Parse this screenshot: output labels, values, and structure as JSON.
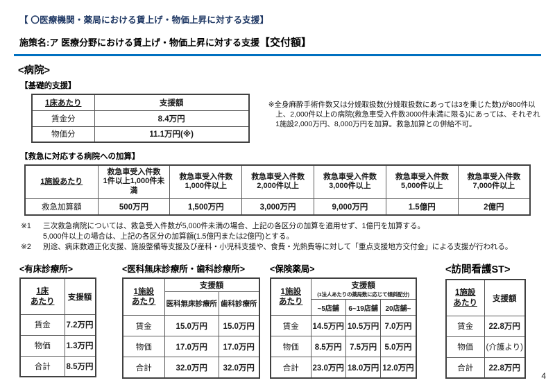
{
  "colors": {
    "accent_blue": "#0070c0",
    "title_navy": "#1f3864"
  },
  "page_number": "4",
  "header": {
    "title": "【 〇医療機関・薬局における賃上げ・物価上昇に対する支援】",
    "policy_prefix": "施策名:ア 医療分野における賃上げ・物価上昇に対する支援",
    "policy_emphasis": "【交付額】"
  },
  "hospital": {
    "title": "<病院>",
    "basic": {
      "label": "【基礎的支援】",
      "unit_header": "1床あたり",
      "amount_header": "支援額",
      "rows": [
        {
          "label": "賃金分",
          "value": "8.4万円"
        },
        {
          "label": "物価分",
          "value": "11.1万円(※)"
        }
      ],
      "note": "※全身麻酔手術件数又は分娩取扱数(分娩取扱数にあっては3を乗じた数)が800件以上、2,000件以上の病院(救急車受入件数3000件未満に限る)にあっては、それぞれ1施設2,000万円、8,000万円を加算。救急加算との併給不可。"
    },
    "emergency": {
      "label": "【救急に対応する病院への加算】",
      "unit_header": "1施設あたり",
      "columns": [
        {
          "l1": "救急車受入件数",
          "l2": "1件以上1,000件未満"
        },
        {
          "l1": "救急車受入件数",
          "l2": "1,000件以上"
        },
        {
          "l1": "救急車受入件数",
          "l2": "2,000件以上"
        },
        {
          "l1": "救急車受入件数",
          "l2": "3,000件以上"
        },
        {
          "l1": "救急車受入件数",
          "l2": "5,000件以上"
        },
        {
          "l1": "救急車受入件数",
          "l2": "7,000件以上"
        }
      ],
      "row_label": "救急加算額",
      "values": [
        "500万円",
        "1,500万円",
        "3,000万円",
        "9,000万円",
        "1.5億円",
        "2億円"
      ]
    },
    "notes": [
      {
        "marker": "※1",
        "lines": [
          "三次救急病院については、救急受入件数が5,000件未満の場合、上記の各区分の加算を適用せず、1億円を加算する。",
          "5,000件以上の場合は、上記の各区分の加算額(1.5億円または2億円)とする。"
        ]
      },
      {
        "marker": "※2",
        "lines": [
          "別途、病床数適正化支援、施設整備等支援及び産科・小児科支援や、食費・光熱費等に対して「重点支援地方交付金」による支援が行われる。"
        ]
      }
    ]
  },
  "bottom": {
    "clinics": {
      "title": "<有床診療所>",
      "unit_l1": "1床",
      "unit_l2": "あたり",
      "amount_header": "支援額",
      "rows": [
        {
          "label": "賃金",
          "value": "7.2万円"
        },
        {
          "label": "物価",
          "value": "1.3万円"
        },
        {
          "label": "合計",
          "value": "8.5万円"
        }
      ]
    },
    "no_bed": {
      "title": "<医科無床診療所・歯科診療所>",
      "unit_l1": "1施設",
      "unit_l2": "あたり",
      "amount_header": "支援額",
      "sub_headers": [
        "医科無床診療所",
        "歯科診療所"
      ],
      "rows": [
        {
          "label": "賃金",
          "v1": "15.0万円",
          "v2": "15.0万円"
        },
        {
          "label": "物価",
          "v1": "17.0万円",
          "v2": "17.0万円"
        },
        {
          "label": "合計",
          "v1": "32.0万円",
          "v2": "32.0万円"
        }
      ]
    },
    "pharmacy": {
      "title": "<保険薬局>",
      "unit_l1": "1施設",
      "unit_l2": "あたり",
      "amount_header": "支援額",
      "amount_subtitle": "(1法人あたりの薬局数に応じて傾斜配分)",
      "sub_headers": [
        "~5店舗",
        "6~19店舗",
        "20店舗~"
      ],
      "rows": [
        {
          "label": "賃金",
          "v1": "14.5万円",
          "v2": "10.5万円",
          "v3": "7.0万円"
        },
        {
          "label": "物価",
          "v1": "8.5万円",
          "v2": "7.5万円",
          "v3": "5.0万円"
        },
        {
          "label": "合計",
          "v1": "23.0万円",
          "v2": "18.0万円",
          "v3": "12.0万円"
        }
      ]
    },
    "visiting_nurse": {
      "title": "<訪問看護ST>",
      "unit_l1": "1施設",
      "unit_l2": "あたり",
      "amount_header": "支援額",
      "rows": [
        {
          "label": "賃金",
          "value": "22.8万円"
        },
        {
          "label": "物価",
          "value": "(介護より)"
        },
        {
          "label": "合計",
          "value": "22.8万円"
        }
      ]
    }
  }
}
